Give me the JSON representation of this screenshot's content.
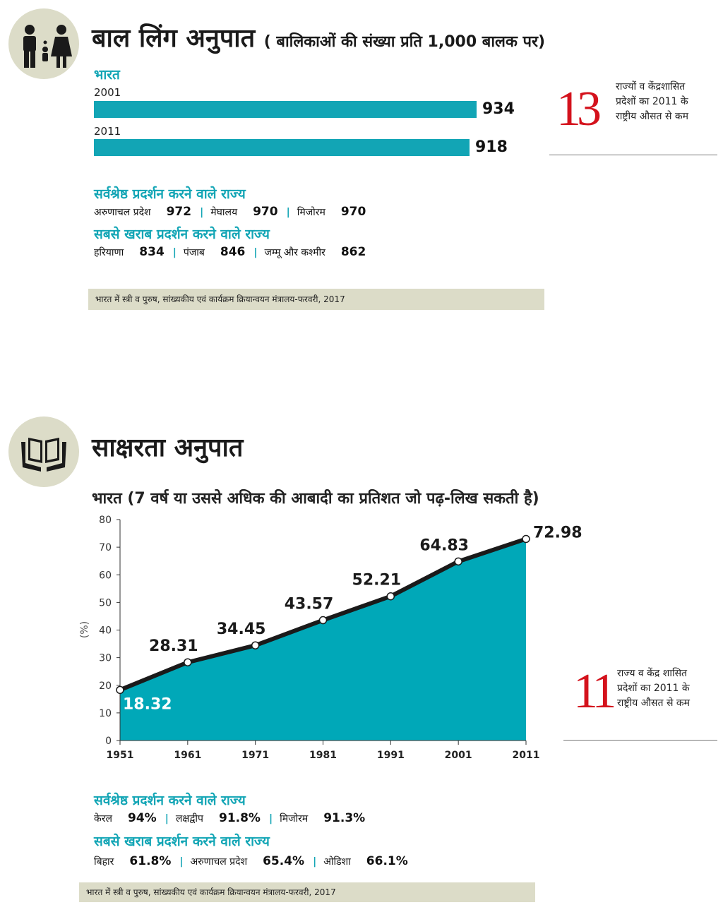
{
  "section1": {
    "title": "बाल लिंग अनुपात",
    "subtitle": "( बालिकाओं की संख्या प्रति 1,000 बालक पर)",
    "country_label": "भारत",
    "bars": [
      {
        "year": "2001",
        "value": 934
      },
      {
        "year": "2011",
        "value": 918
      }
    ],
    "side_stat": {
      "number": "13",
      "text": [
        "राज्यों व केंद्रशासित",
        "प्रदेशों  का 2011 के",
        "राष्ट्रीय औसत से कम"
      ]
    },
    "best_heading": "सर्वश्रेष्ठ प्रदर्शन करने वाले राज्य",
    "best": [
      {
        "name": "अरुणाचल प्रदेश",
        "value": "972"
      },
      {
        "name": "मेघालय",
        "value": "970"
      },
      {
        "name": "मिजोरम",
        "value": "970"
      }
    ],
    "worst_heading": "सबसे खराब प्रदर्शन करने वाले राज्य",
    "worst": [
      {
        "name": "हरियाणा",
        "value": "834"
      },
      {
        "name": "पंजाब",
        "value": "846"
      },
      {
        "name": "जम्मू और कश्मीर",
        "value": "862"
      }
    ],
    "source": "भारत में स्त्री व पुरुष, सांख्यकीय एवं कार्यक्रम क्रियान्वयन मंत्रालय-फरवरी, 2017"
  },
  "section2": {
    "title": "साक्षरता अनुपात",
    "chart_title": "भारत (7 वर्ष या उससे अधिक की आबादी का प्रतिशत जो पढ़-लिख सकती है)",
    "side_stat": {
      "number": "11",
      "text": [
        "राज्य व केंद्र शासित",
        "प्रदेशों का 2011 के",
        "राष्ट्रीय औसत से कम"
      ]
    },
    "best_heading": "सर्वश्रेष्ठ प्रदर्शन करने वाले राज्य",
    "best": [
      {
        "name": "केरल",
        "value": "94%"
      },
      {
        "name": "लक्षद्वीप",
        "value": "91.8%"
      },
      {
        "name": "मिजोरम",
        "value": "91.3%"
      }
    ],
    "worst_heading": "सबसे खराब प्रदर्शन करने वाले राज्य",
    "worst": [
      {
        "name": "बिहार",
        "value": "61.8%"
      },
      {
        "name": "अरुणाचल प्रदेश",
        "value": "65.4%"
      },
      {
        "name": "ओडिशा",
        "value": "66.1%"
      }
    ],
    "source": "भारत में स्त्री व पुरुष, सांख्यकीय एवं कार्यक्रम क्रियान्वयन मंत्रालय-फरवरी, 2017"
  },
  "colors": {
    "teal": "#12a5b5",
    "chart_fill": "#00a8b8",
    "red": "#d4121c",
    "source_bg": "#dcdcc8"
  },
  "icons": [
    "parents-child-icon",
    "open-book-hands-icon"
  ],
  "chart_data": [
    {
      "type": "bar",
      "orientation": "horizontal",
      "categories": [
        "2001",
        "2011"
      ],
      "values": [
        934,
        918
      ],
      "title": "बाल लिंग अनुपात"
    },
    {
      "type": "area",
      "x": [
        "1951",
        "1961",
        "1971",
        "1981",
        "1991",
        "2001",
        "2011"
      ],
      "values": [
        18.32,
        28.31,
        34.45,
        43.57,
        52.21,
        64.83,
        72.98
      ],
      "labels": [
        "18.32",
        "28.31",
        "34.45",
        "43.57",
        "52.21",
        "64.83",
        "72.98"
      ],
      "title": "भारत (7 वर्ष या उससे अधिक की आबादी का प्रतिशत जो पढ़-लिख सकती है)",
      "ylabel": "(%)",
      "ylim": [
        0,
        80
      ],
      "yticks": [
        "0",
        "10",
        "20",
        "30",
        "40",
        "50",
        "60",
        "70",
        "80"
      ],
      "grid": false
    }
  ]
}
